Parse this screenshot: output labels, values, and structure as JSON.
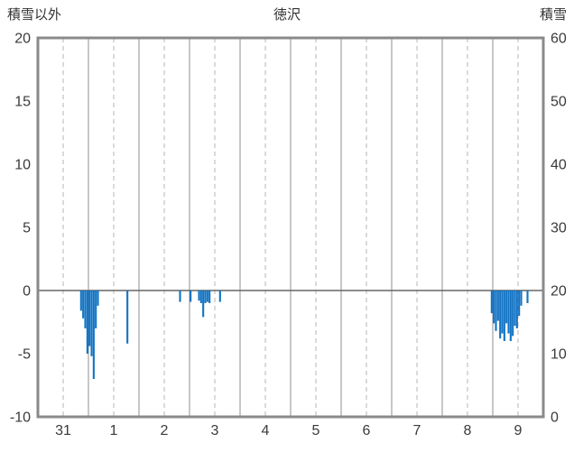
{
  "header": {
    "left": "積雪以外",
    "center": "徳沢",
    "right": "積雪"
  },
  "chart_data": {
    "type": "bar",
    "title": "徳沢",
    "left_axis": {
      "label": "積雪以外",
      "min": -10,
      "max": 20,
      "ticks": [
        20,
        15,
        10,
        5,
        0,
        -5,
        -10
      ]
    },
    "right_axis": {
      "label": "積雪",
      "min": 0,
      "max": 60,
      "ticks": [
        60,
        50,
        40,
        30,
        20,
        10,
        0
      ]
    },
    "x_axis": {
      "day_labels": [
        "31",
        "1",
        "2",
        "3",
        "4",
        "5",
        "6",
        "7",
        "8",
        "9"
      ],
      "hours_per_day": 24
    },
    "legend_position": "none",
    "grid": {
      "vertical_solid": "day boundaries",
      "vertical_dashed": "day midpoints",
      "horizontal": "zero line only"
    },
    "colors": {
      "bar": "#1273c4",
      "grid_solid": "#8f8f8f",
      "grid_dashed": "#b5b5b5",
      "border": "#8a8a8a",
      "zero_line": "#666666",
      "text": "#3a3a3a"
    },
    "bars_unit": "left axis units, t = hours from start of first day (31)",
    "bars": [
      {
        "t": 20,
        "v": -1.6
      },
      {
        "t": 21,
        "v": -2.2
      },
      {
        "t": 22,
        "v": -3.0
      },
      {
        "t": 23,
        "v": -5.0
      },
      {
        "t": 24,
        "v": -4.4
      },
      {
        "t": 25,
        "v": -5.2
      },
      {
        "t": 26,
        "v": -7.0
      },
      {
        "t": 27,
        "v": -3.0
      },
      {
        "t": 28,
        "v": -1.2
      },
      {
        "t": 42,
        "v": -4.2
      },
      {
        "t": 67,
        "v": -0.9
      },
      {
        "t": 72,
        "v": -0.9
      },
      {
        "t": 76,
        "v": -0.8
      },
      {
        "t": 77,
        "v": -1.0
      },
      {
        "t": 78,
        "v": -2.1
      },
      {
        "t": 79,
        "v": -1.0
      },
      {
        "t": 80,
        "v": -0.9
      },
      {
        "t": 81,
        "v": -1.0
      },
      {
        "t": 86,
        "v": -0.9
      },
      {
        "t": 215,
        "v": -1.8
      },
      {
        "t": 216,
        "v": -2.6
      },
      {
        "t": 217,
        "v": -3.2
      },
      {
        "t": 218,
        "v": -2.4
      },
      {
        "t": 219,
        "v": -3.8
      },
      {
        "t": 220,
        "v": -3.4
      },
      {
        "t": 221,
        "v": -4.0
      },
      {
        "t": 222,
        "v": -2.6
      },
      {
        "t": 223,
        "v": -3.4
      },
      {
        "t": 224,
        "v": -4.0
      },
      {
        "t": 225,
        "v": -3.6
      },
      {
        "t": 226,
        "v": -2.8
      },
      {
        "t": 227,
        "v": -3.0
      },
      {
        "t": 228,
        "v": -2.0
      },
      {
        "t": 229,
        "v": -1.2
      },
      {
        "t": 232,
        "v": -1.0
      }
    ]
  }
}
